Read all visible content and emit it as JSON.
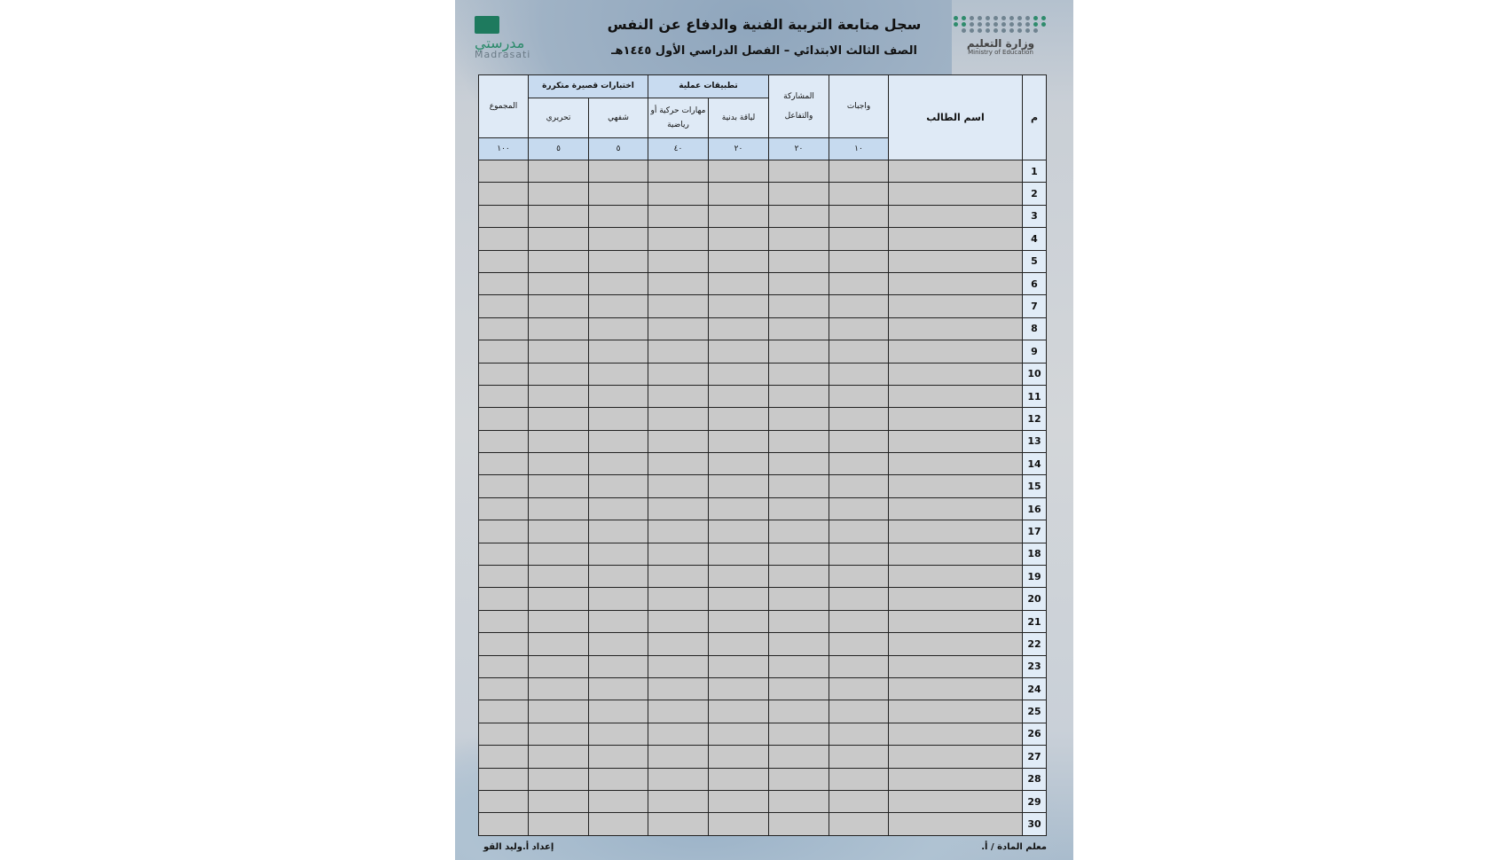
{
  "header": {
    "title": "سجل متابعة التربية الفنية والدفاع عن النفس",
    "subtitle": "الصف الثالث الابتدائي – الفصل الدراسي الأول ١٤٤٥هـ",
    "ministry_logo": {
      "ar": "وزارة التعليم",
      "en": "Ministry of Education"
    },
    "madrasati_logo": {
      "ar": "مدرستي",
      "en": "Madrasati"
    }
  },
  "table": {
    "col_index": "م",
    "col_name": "اسم الطالب",
    "col_homework": "واجبات",
    "col_participation": "المشاركة والتفاعل",
    "group_practical": "تطبيقات عملية",
    "col_fitness": "لياقة بدنية",
    "col_skills": "مهارات حركية أو رياضية",
    "group_quizzes": "اختبارات قصيرة متكررة",
    "col_oral": "شفهي",
    "col_written": "تحريري",
    "col_total": "المجموع",
    "max_scores": {
      "homework": "١٠",
      "participation": "٢٠",
      "fitness": "٢٠",
      "skills": "٤٠",
      "oral": "٥",
      "written": "٥",
      "total": "١٠٠"
    },
    "rows": [
      "1",
      "2",
      "3",
      "4",
      "5",
      "6",
      "7",
      "8",
      "9",
      "10",
      "11",
      "12",
      "13",
      "14",
      "15",
      "16",
      "17",
      "18",
      "19",
      "20",
      "21",
      "22",
      "23",
      "24",
      "25",
      "26",
      "27",
      "28",
      "29",
      "30"
    ]
  },
  "footer": {
    "teacher": "معلم المادة / أ.",
    "prepared_by": "إعداد أ.وليد القو"
  },
  "colors": {
    "header_cell": "#dfeaf6",
    "group_cell": "#c8dbf0",
    "data_cell": "#c9c9c9",
    "brand_green": "#1e7a5e"
  }
}
